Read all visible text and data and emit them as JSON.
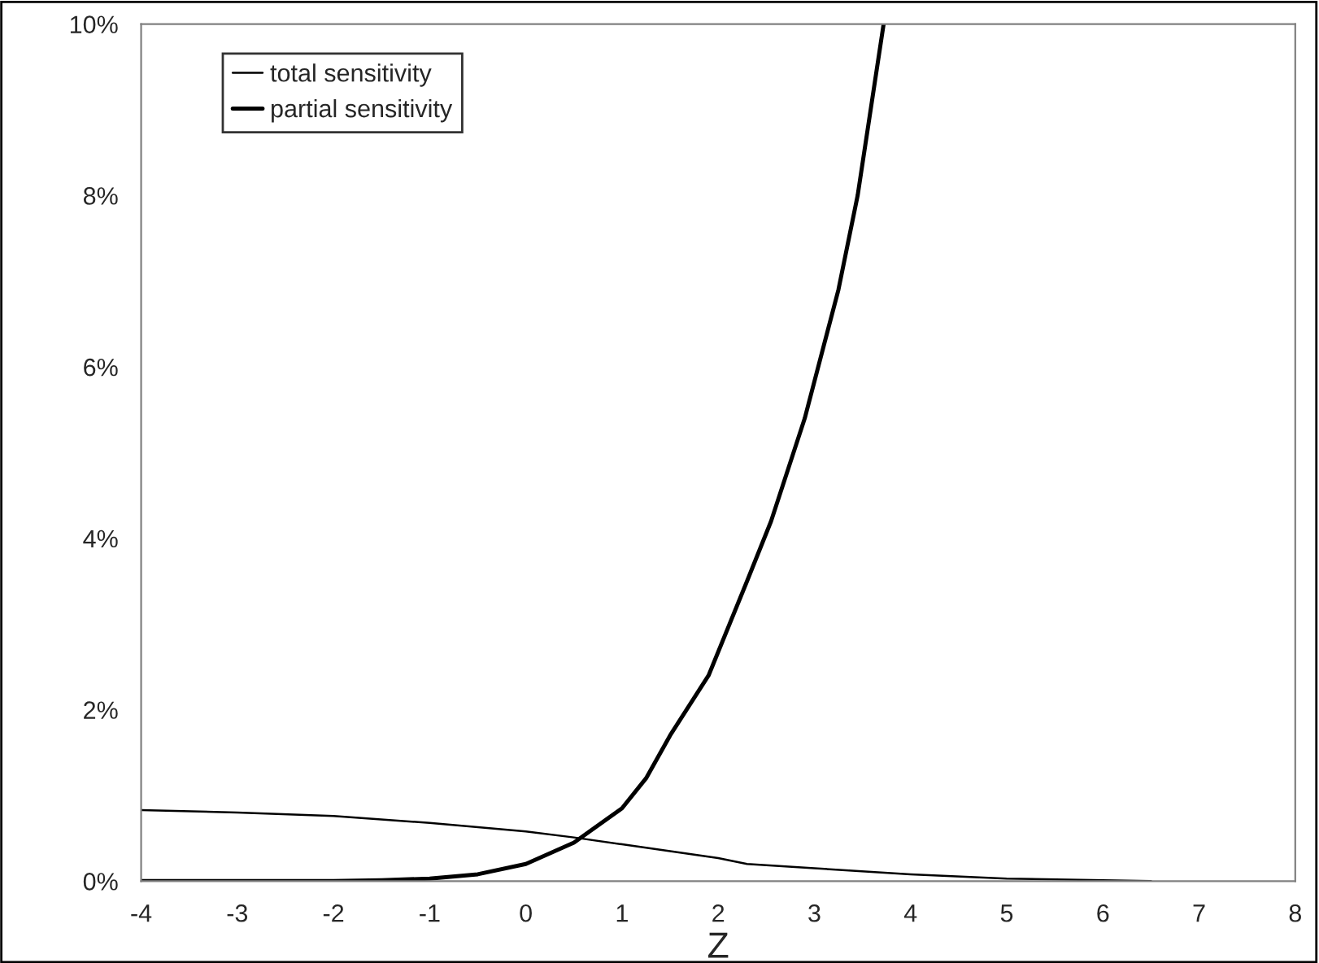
{
  "chart_data": {
    "type": "line",
    "xlabel": "Z",
    "xlim": [
      -4,
      8
    ],
    "xticks": [
      -4,
      -3,
      -2,
      -1,
      0,
      1,
      2,
      3,
      4,
      5,
      6,
      7,
      8
    ],
    "ylim": [
      0,
      10
    ],
    "yticks": [
      {
        "value": 0,
        "label": "0%"
      },
      {
        "value": 2,
        "label": "2%"
      },
      {
        "value": 4,
        "label": "4%"
      },
      {
        "value": 6,
        "label": "6%"
      },
      {
        "value": 8,
        "label": "8%"
      },
      {
        "value": 10,
        "label": "10%"
      }
    ],
    "grid": false,
    "legend": "top left",
    "marker": "none",
    "line_style": "solid",
    "series": [
      {
        "name": "total sensitivity",
        "color": "#000000",
        "x": [
          -4,
          -3,
          -2,
          -1,
          0,
          0.5,
          1,
          1.5,
          2,
          2.3,
          3,
          4,
          5,
          6,
          6.5
        ],
        "values": [
          0.83,
          0.8,
          0.76,
          0.68,
          0.58,
          0.51,
          0.43,
          0.35,
          0.27,
          0.2,
          0.15,
          0.08,
          0.03,
          0.01,
          0.0
        ]
      },
      {
        "name": "partial sensitivity",
        "color": "#000000",
        "x": [
          -4,
          -3,
          -2,
          -1.5,
          -1,
          -0.5,
          0,
          0.5,
          1,
          1.25,
          1.5,
          1.9,
          2.3,
          2.55,
          2.9,
          3.25,
          3.45,
          3.72
        ],
        "values": [
          0,
          0,
          0,
          0.01,
          0.03,
          0.08,
          0.2,
          0.45,
          0.85,
          1.2,
          1.7,
          2.4,
          3.5,
          4.2,
          5.4,
          6.9,
          8.0,
          10.0
        ]
      }
    ]
  }
}
